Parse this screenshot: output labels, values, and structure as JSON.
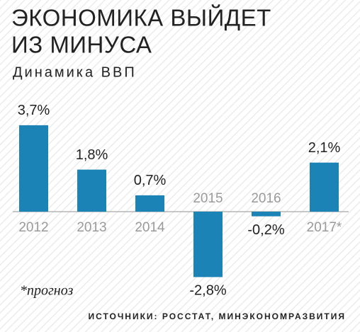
{
  "chart_data": {
    "type": "bar",
    "title": [
      "ЭКОНОМИКА ВЫЙДЕТ",
      "ИЗ МИНУСА"
    ],
    "subtitle": "Динамика ВВП",
    "categories": [
      "2012",
      "2013",
      "2014",
      "2015",
      "2016",
      "2017*"
    ],
    "values": [
      3.7,
      1.8,
      0.7,
      -2.8,
      -0.2,
      2.1
    ],
    "value_labels": [
      "3,7%",
      "1,8%",
      "0,7%",
      "-2,8%",
      "-0,2%",
      "2,1%"
    ],
    "color": "#1b83b5",
    "note": "*прогноз",
    "source": "ИСТОЧНИКИ: РОССТАТ, МИНЭКОНОМРАЗВИТИЯ"
  }
}
